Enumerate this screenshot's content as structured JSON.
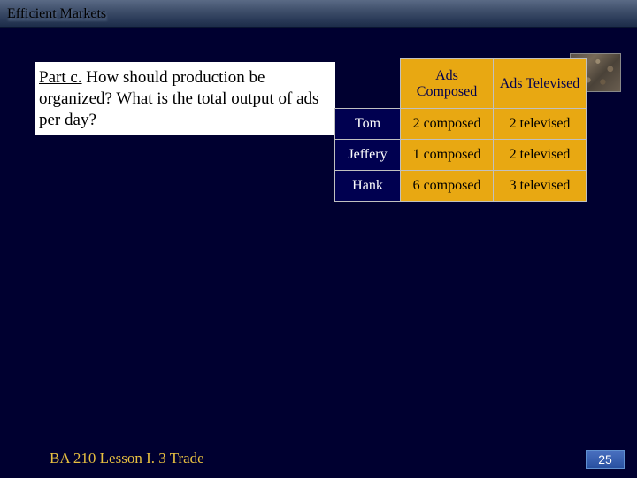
{
  "slide": {
    "title": "Efficient Markets",
    "question": {
      "part_label": "Part c.",
      "text": "  How should production be organized? What is the total output of ads per day?"
    },
    "table": {
      "col_headers": [
        "Ads Composed",
        "Ads Televised"
      ],
      "rows": [
        {
          "name": "Tom",
          "c1": "2 composed",
          "c2": "2 televised"
        },
        {
          "name": "Jeffery",
          "c1": "1 composed",
          "c2": "2 televised"
        },
        {
          "name": "Hank",
          "c1": "6 composed",
          "c2": "3 televised"
        }
      ]
    },
    "footer": "BA 210  Lesson I. 3 Trade",
    "page_number": "25",
    "colors": {
      "slide_bg": "#000030",
      "accent_gold": "#e8a812",
      "table_header_bg": "#000050",
      "footer_text": "#e8c040"
    }
  }
}
